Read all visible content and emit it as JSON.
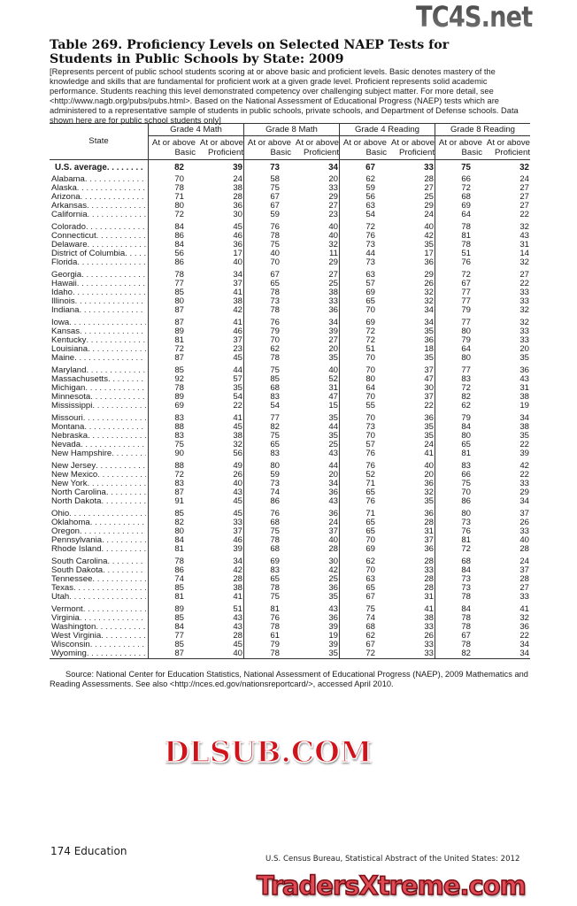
{
  "title": "Table 269. Proficiency Levels on Selected NAEP Tests for Students in Public Schools by State: 2009",
  "intro": "[Represents percent of public school students scoring at or above basic and proficient levels. Basic denotes mastery of the knowledge and skills that are fundamental for proficient work at a given grade level. Proficient represents solid academic performance. Students reaching this level demonstrated competency over challenging subject matter. For more detail, see <http://www.nagb.org/pubs/pubs.html>. Based on the National Assessment of Educational Progress (NAEP) tests which are administered to a representative sample of students in public schools, private schools, and Department of Defense schools. Data shown here are for public school students only]",
  "table": {
    "state_header": "State",
    "groups": [
      "Grade 4 Math",
      "Grade 8 Math",
      "Grade 4 Reading",
      "Grade 8 Reading"
    ],
    "subheaders": [
      [
        "At or above",
        "Basic"
      ],
      [
        "At or above",
        "Proficient"
      ]
    ],
    "us_average": {
      "state": "U.S. average",
      "values": [
        82,
        39,
        73,
        34,
        67,
        33,
        75,
        32
      ]
    },
    "row_groups": [
      [
        {
          "state": "Alabama",
          "values": [
            70,
            24,
            58,
            20,
            62,
            28,
            66,
            24
          ]
        },
        {
          "state": "Alaska",
          "values": [
            78,
            38,
            75,
            33,
            59,
            27,
            72,
            27
          ]
        },
        {
          "state": "Arizona",
          "values": [
            71,
            28,
            67,
            29,
            56,
            25,
            68,
            27
          ]
        },
        {
          "state": "Arkansas",
          "values": [
            80,
            36,
            67,
            27,
            63,
            29,
            69,
            27
          ]
        },
        {
          "state": "California",
          "values": [
            72,
            30,
            59,
            23,
            54,
            24,
            64,
            22
          ]
        }
      ],
      [
        {
          "state": "Colorado",
          "values": [
            84,
            45,
            76,
            40,
            72,
            40,
            78,
            32
          ]
        },
        {
          "state": "Connecticut",
          "values": [
            86,
            46,
            78,
            40,
            76,
            42,
            81,
            43
          ]
        },
        {
          "state": "Delaware",
          "values": [
            84,
            36,
            75,
            32,
            73,
            35,
            78,
            31
          ]
        },
        {
          "state": "District of Columbia",
          "values": [
            56,
            17,
            40,
            11,
            44,
            17,
            51,
            14
          ]
        },
        {
          "state": "Florida",
          "values": [
            86,
            40,
            70,
            29,
            73,
            36,
            76,
            32
          ]
        }
      ],
      [
        {
          "state": "Georgia",
          "values": [
            78,
            34,
            67,
            27,
            63,
            29,
            72,
            27
          ]
        },
        {
          "state": "Hawaii",
          "values": [
            77,
            37,
            65,
            25,
            57,
            26,
            67,
            22
          ]
        },
        {
          "state": "Idaho",
          "values": [
            85,
            41,
            78,
            38,
            69,
            32,
            77,
            33
          ]
        },
        {
          "state": "Illinois",
          "values": [
            80,
            38,
            73,
            33,
            65,
            32,
            77,
            33
          ]
        },
        {
          "state": "Indiana",
          "values": [
            87,
            42,
            78,
            36,
            70,
            34,
            79,
            32
          ]
        }
      ],
      [
        {
          "state": "Iowa",
          "values": [
            87,
            41,
            76,
            34,
            69,
            34,
            77,
            32
          ]
        },
        {
          "state": "Kansas",
          "values": [
            89,
            46,
            79,
            39,
            72,
            35,
            80,
            33
          ]
        },
        {
          "state": "Kentucky",
          "values": [
            81,
            37,
            70,
            27,
            72,
            36,
            79,
            33
          ]
        },
        {
          "state": "Louisiana",
          "values": [
            72,
            23,
            62,
            20,
            51,
            18,
            64,
            20
          ]
        },
        {
          "state": "Maine",
          "values": [
            87,
            45,
            78,
            35,
            70,
            35,
            80,
            35
          ]
        }
      ],
      [
        {
          "state": "Maryland",
          "values": [
            85,
            44,
            75,
            40,
            70,
            37,
            77,
            36
          ]
        },
        {
          "state": "Massachusetts",
          "values": [
            92,
            57,
            85,
            52,
            80,
            47,
            83,
            43
          ]
        },
        {
          "state": "Michigan",
          "values": [
            78,
            35,
            68,
            31,
            64,
            30,
            72,
            31
          ]
        },
        {
          "state": "Minnesota",
          "values": [
            89,
            54,
            83,
            47,
            70,
            37,
            82,
            38
          ]
        },
        {
          "state": "Mississippi",
          "values": [
            69,
            22,
            54,
            15,
            55,
            22,
            62,
            19
          ]
        }
      ],
      [
        {
          "state": "Missouri",
          "values": [
            83,
            41,
            77,
            35,
            70,
            36,
            79,
            34
          ]
        },
        {
          "state": "Montana",
          "values": [
            88,
            45,
            82,
            44,
            73,
            35,
            84,
            38
          ]
        },
        {
          "state": "Nebraska",
          "values": [
            83,
            38,
            75,
            35,
            70,
            35,
            80,
            35
          ]
        },
        {
          "state": "Nevada",
          "values": [
            75,
            32,
            65,
            25,
            57,
            24,
            65,
            22
          ]
        },
        {
          "state": "New Hampshire",
          "values": [
            90,
            56,
            83,
            43,
            76,
            41,
            81,
            39
          ]
        }
      ],
      [
        {
          "state": "New Jersey",
          "values": [
            88,
            49,
            80,
            44,
            76,
            40,
            83,
            42
          ]
        },
        {
          "state": "New Mexico",
          "values": [
            72,
            26,
            59,
            20,
            52,
            20,
            66,
            22
          ]
        },
        {
          "state": "New York",
          "values": [
            83,
            40,
            73,
            34,
            71,
            36,
            75,
            33
          ]
        },
        {
          "state": "North Carolina",
          "values": [
            87,
            43,
            74,
            36,
            65,
            32,
            70,
            29
          ]
        },
        {
          "state": "North Dakota",
          "values": [
            91,
            45,
            86,
            43,
            76,
            35,
            86,
            34
          ]
        }
      ],
      [
        {
          "state": "Ohio",
          "values": [
            85,
            45,
            76,
            36,
            71,
            36,
            80,
            37
          ]
        },
        {
          "state": "Oklahoma",
          "values": [
            82,
            33,
            68,
            24,
            65,
            28,
            73,
            26
          ]
        },
        {
          "state": "Oregon",
          "values": [
            80,
            37,
            75,
            37,
            65,
            31,
            76,
            33
          ]
        },
        {
          "state": "Pennsylvania",
          "values": [
            84,
            46,
            78,
            40,
            70,
            37,
            81,
            40
          ]
        },
        {
          "state": "Rhode Island",
          "values": [
            81,
            39,
            68,
            28,
            69,
            36,
            72,
            28
          ]
        }
      ],
      [
        {
          "state": "South Carolina",
          "values": [
            78,
            34,
            69,
            30,
            62,
            28,
            68,
            24
          ]
        },
        {
          "state": "South Dakota",
          "values": [
            86,
            42,
            83,
            42,
            70,
            33,
            84,
            37
          ]
        },
        {
          "state": "Tennessee",
          "values": [
            74,
            28,
            65,
            25,
            63,
            28,
            73,
            28
          ]
        },
        {
          "state": "Texas",
          "values": [
            85,
            38,
            78,
            36,
            65,
            28,
            73,
            27
          ]
        },
        {
          "state": "Utah",
          "values": [
            81,
            41,
            75,
            35,
            67,
            31,
            78,
            33
          ]
        }
      ],
      [
        {
          "state": "Vermont",
          "values": [
            89,
            51,
            81,
            43,
            75,
            41,
            84,
            41
          ]
        },
        {
          "state": "Virginia",
          "values": [
            85,
            43,
            76,
            36,
            74,
            38,
            78,
            32
          ]
        },
        {
          "state": "Washington",
          "values": [
            84,
            43,
            78,
            39,
            68,
            33,
            78,
            36
          ]
        },
        {
          "state": "West Virginia",
          "values": [
            77,
            28,
            61,
            19,
            62,
            26,
            67,
            22
          ]
        },
        {
          "state": "Wisconsin",
          "values": [
            85,
            45,
            79,
            39,
            67,
            33,
            78,
            34
          ]
        },
        {
          "state": "Wyoming",
          "values": [
            87,
            40,
            78,
            35,
            72,
            33,
            82,
            34
          ]
        }
      ]
    ]
  },
  "source": "Source: National Center for Education Statistics, National Assessment of Educational Progress (NAEP), 2009 Mathematics and Reading Assessments. See also <http://nces.ed.gov/nationsreportcard/>, accessed April 2010.",
  "footer": {
    "page": "174  Education",
    "credit": "U.S. Census Bureau, Statistical Abstract of the United States: 2012"
  },
  "watermarks": {
    "top": "TC4S.net",
    "middle": "DLSUB.COM",
    "bottom": "TradersXtreme.com"
  }
}
